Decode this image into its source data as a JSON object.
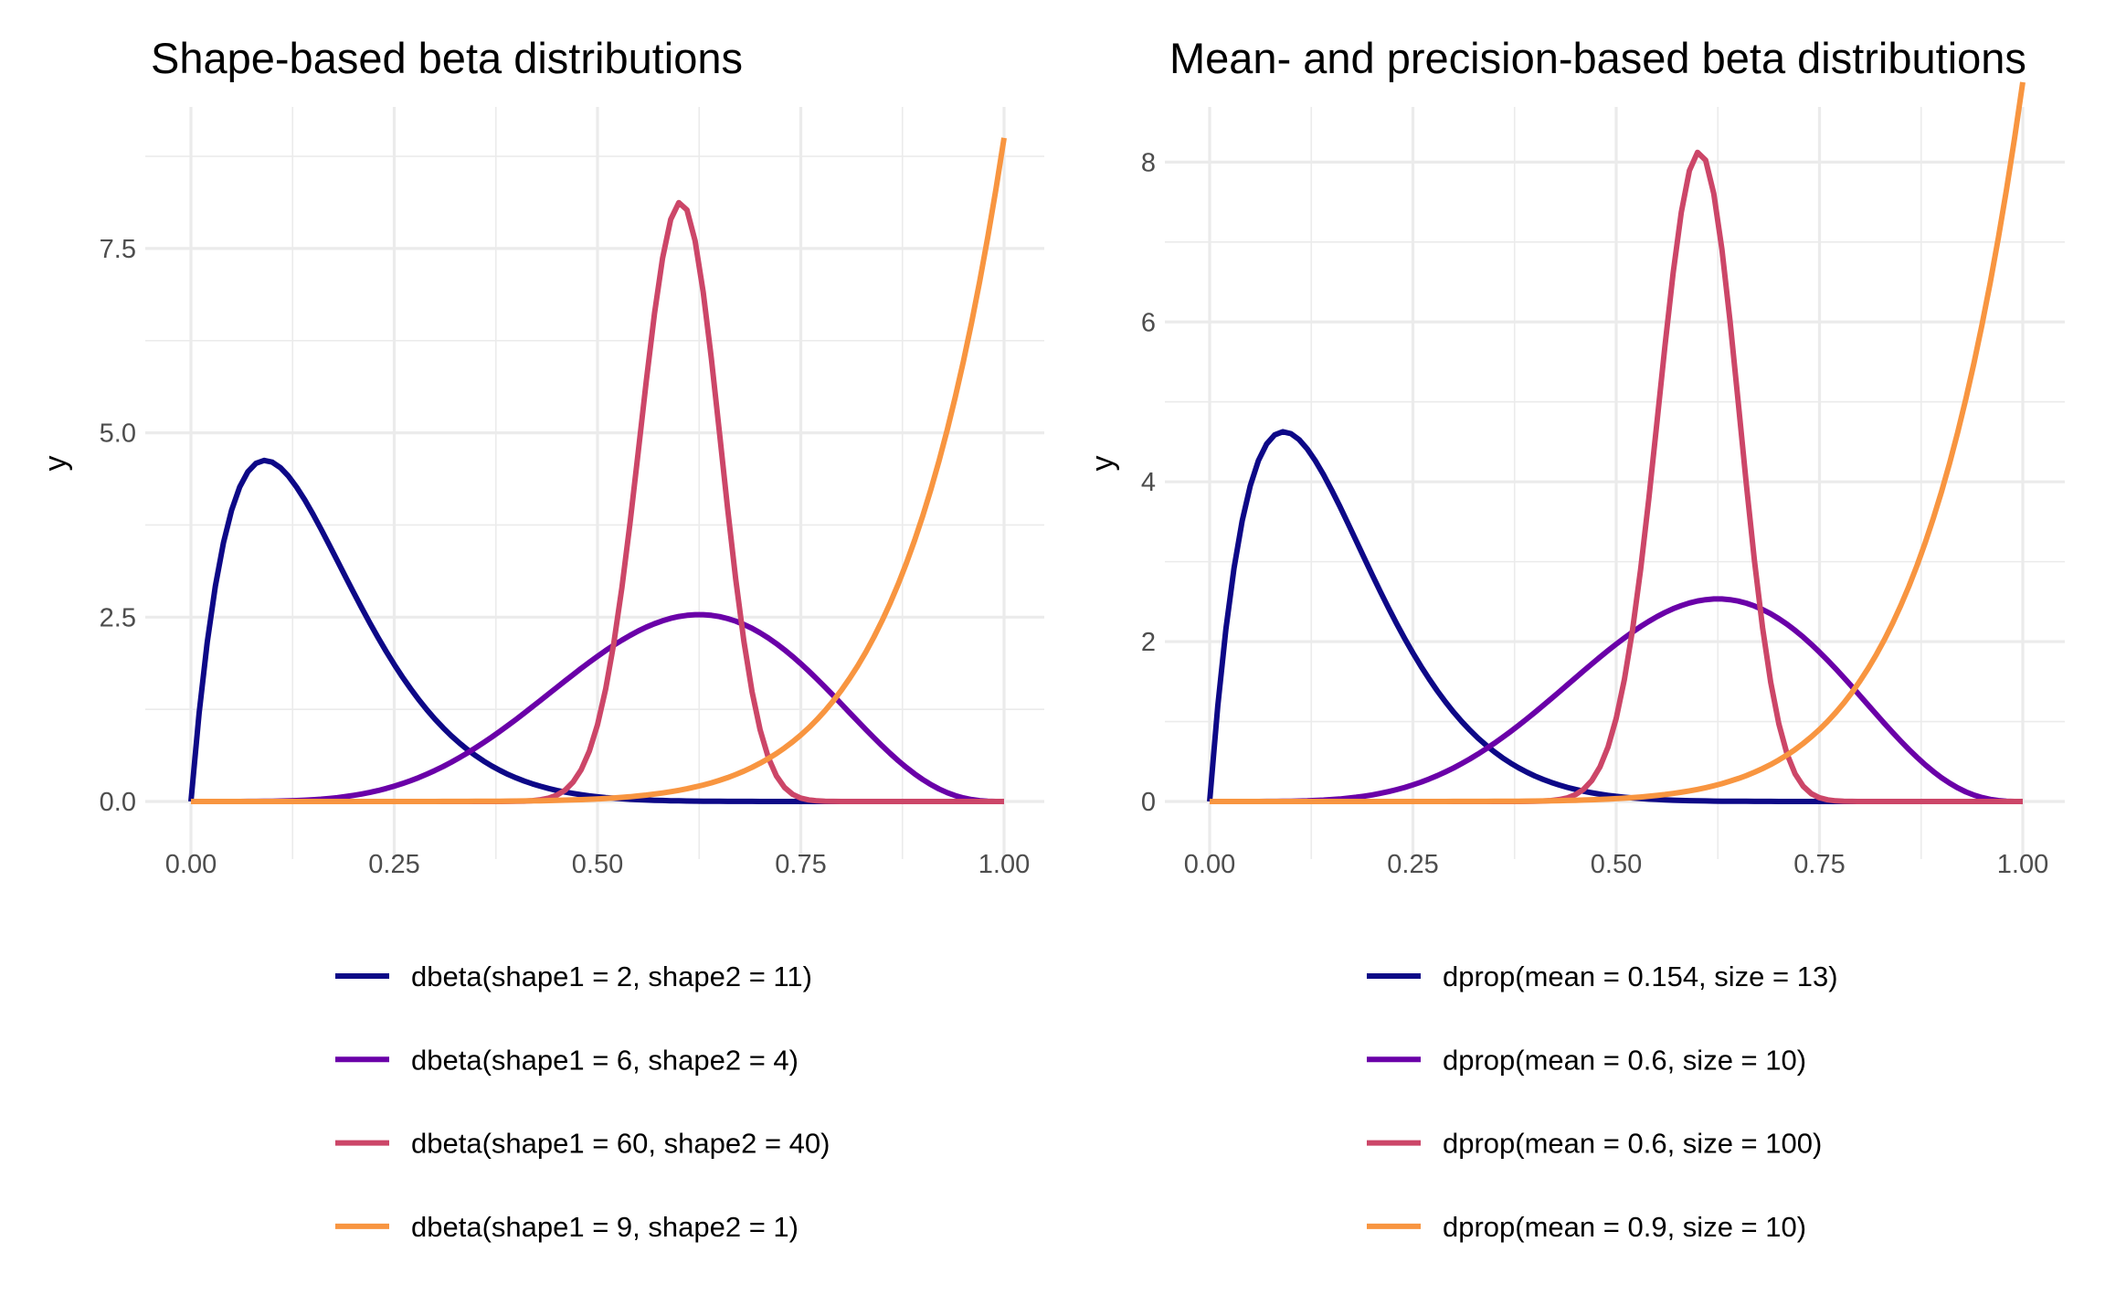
{
  "chart_data": [
    {
      "type": "line",
      "title": "Shape-based beta distributions",
      "xlabel": "",
      "ylabel": "y",
      "xlim": [
        0,
        1
      ],
      "ylim": [
        0,
        9.42
      ],
      "x_ticks": [
        "0.00",
        "0.25",
        "0.50",
        "0.75",
        "1.00"
      ],
      "y_ticks": [
        "0.0",
        "2.5",
        "5.0",
        "7.5"
      ],
      "y_tick_values": [
        0,
        2.5,
        5,
        7.5
      ],
      "y_minor": [
        1.25,
        3.75,
        6.25,
        8.75
      ],
      "grid": true,
      "legend": "bottom",
      "x_step": 0.01,
      "series": [
        {
          "name": "dbeta(shape1 = 2, shape2 = 11)",
          "shape1": 2,
          "shape2": 11,
          "color": "#0D0887"
        },
        {
          "name": "dbeta(shape1 = 6, shape2 = 4)",
          "shape1": 6,
          "shape2": 4,
          "color": "#6A00A8"
        },
        {
          "name": "dbeta(shape1 = 60, shape2 = 40)",
          "shape1": 60,
          "shape2": 40,
          "color": "#CC4668"
        },
        {
          "name": "dbeta(shape1 = 9, shape2 = 1)",
          "shape1": 9,
          "shape2": 1,
          "color": "#F89540"
        }
      ]
    },
    {
      "type": "line",
      "title": "Mean- and precision-based beta distributions",
      "xlabel": "",
      "ylabel": "y",
      "xlim": [
        0,
        1
      ],
      "ylim": [
        0,
        8.69
      ],
      "x_ticks": [
        "0.00",
        "0.25",
        "0.50",
        "0.75",
        "1.00"
      ],
      "y_ticks": [
        "0",
        "2",
        "4",
        "6",
        "8"
      ],
      "y_tick_values": [
        0,
        2,
        4,
        6,
        8
      ],
      "y_minor": [
        1,
        3,
        5,
        7
      ],
      "grid": true,
      "legend": "bottom",
      "x_step": 0.01,
      "series": [
        {
          "name": "dprop(mean = 0.154, size = 13)",
          "shape1": 2,
          "shape2": 11,
          "color": "#0D0887"
        },
        {
          "name": "dprop(mean = 0.6, size = 10)",
          "shape1": 6,
          "shape2": 4,
          "color": "#6A00A8"
        },
        {
          "name": "dprop(mean = 0.6, size = 100)",
          "shape1": 60,
          "shape2": 40,
          "color": "#CC4668"
        },
        {
          "name": "dprop(mean = 0.9, size = 10)",
          "shape1": 9,
          "shape2": 1,
          "color": "#F89540"
        }
      ]
    }
  ]
}
